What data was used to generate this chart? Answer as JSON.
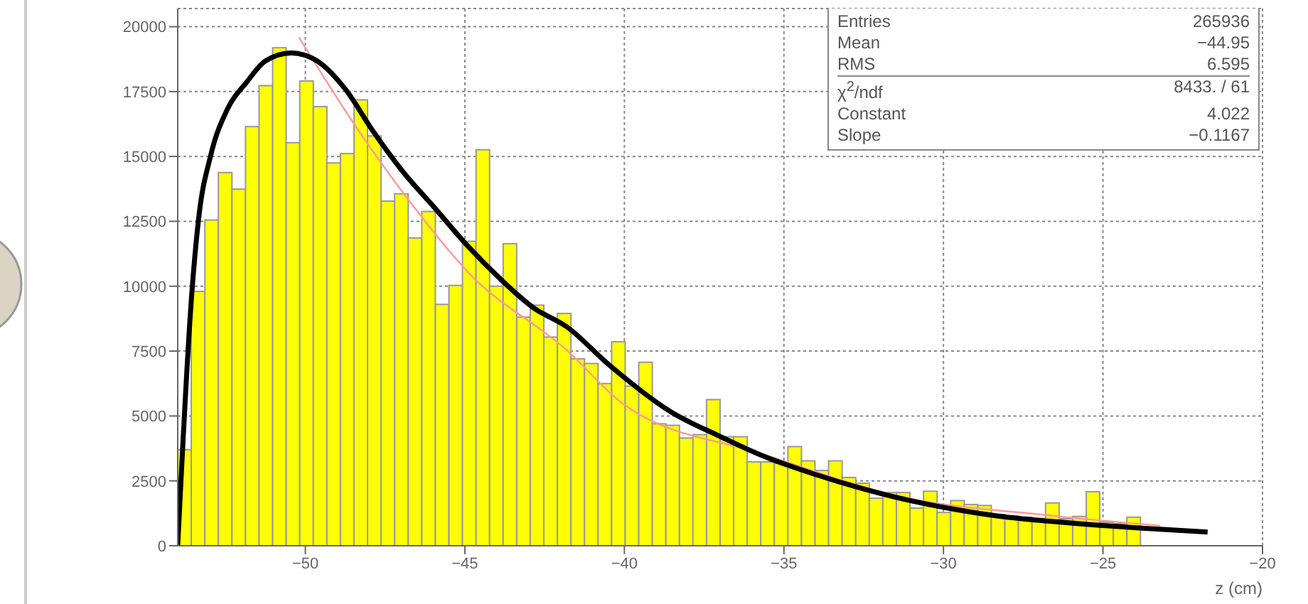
{
  "chart_data": {
    "type": "histogram",
    "xlabel": "z (cm)",
    "xlim": [
      -54,
      -20
    ],
    "xticks": [
      -50,
      -45,
      -40,
      -35,
      -30,
      -25,
      -20
    ],
    "ylim": [
      0,
      20700
    ],
    "yticks": [
      0,
      2500,
      5000,
      7500,
      10000,
      12500,
      15000,
      17500,
      20000
    ],
    "grid": true,
    "marker": "none",
    "line_style": "solid",
    "annotations": [
      "Entries 265936",
      "Mean −44.95",
      "RMS 6.595",
      "χ$^{2}$/ndf 8433. / 61",
      "Constant 4.022",
      "Slope −0.1167"
    ],
    "series": [
      {
        "color": "#ffff00",
        "bins": [
          -54,
          -53.575,
          -53.15,
          -52.725,
          -52.3,
          -51.875,
          -51.45,
          -51.025,
          -50.6,
          -50.175,
          -49.75,
          -49.325,
          -48.9,
          -48.475,
          -48.05,
          -47.625,
          -47.2,
          -46.775,
          -46.35,
          -45.925,
          -45.5,
          -45.075,
          -44.65,
          -44.225,
          -43.8,
          -43.375,
          -42.95,
          -42.525,
          -42.1,
          -41.675,
          -41.25,
          -40.825,
          -40.4,
          -39.975,
          -39.55,
          -39.125,
          -38.7,
          -38.275,
          -37.85,
          -37.425,
          -37,
          -36.575,
          -36.15,
          -35.725,
          -35.3,
          -34.875,
          -34.45,
          -34.025,
          -33.6,
          -33.175,
          -32.75,
          -32.325,
          -31.9,
          -31.475,
          -31.05,
          -30.625,
          -30.2,
          -29.775,
          -29.35,
          -28.925,
          -28.5,
          -28.075,
          -27.65,
          -27.225,
          -26.8,
          -26.375,
          -25.95,
          -25.525,
          -25.1,
          -24.675,
          -24.25,
          -23.825,
          -23.4,
          -22.975,
          -22.55,
          -22.125,
          -21.7,
          -21.275,
          -20.85,
          -20.425,
          -20
        ],
        "values": [
          3700,
          9800,
          12550,
          14380,
          13740,
          16150,
          17730,
          19190,
          15530,
          17910,
          16920,
          14750,
          15110,
          17180,
          15790,
          13280,
          13560,
          11860,
          12880,
          9300,
          10030,
          11730,
          15260,
          10000,
          11640,
          8810,
          9270,
          8040,
          8950,
          7200,
          7020,
          6250,
          7860,
          6150,
          7070,
          4700,
          4640,
          4150,
          4280,
          5630,
          4200,
          4200,
          3230,
          3230,
          3180,
          3820,
          3270,
          2900,
          3270,
          2630,
          2410,
          1830,
          2050,
          2050,
          1450,
          2100,
          1280,
          1740,
          1590,
          1550,
          1200,
          1150,
          1100,
          1050,
          1650,
          1040,
          1130,
          2080,
          900,
          850,
          1100,
          0,
          0,
          0,
          0,
          0,
          0,
          0,
          0,
          0
        ]
      },
      {
        "type": "line",
        "color": "#ff9999",
        "x": [
          -50.2,
          -48.3,
          -46.8,
          -44.9,
          -41.8,
          -40.0,
          -35.6,
          -31.2,
          -26.7,
          -23.2
        ],
        "values": [
          19590,
          15940,
          13380,
          10540,
          7530,
          5430,
          3510,
          1860,
          1170,
          770
        ]
      },
      {
        "type": "line",
        "color": "#000000",
        "x": [
          -54,
          -53.56,
          -53.34,
          -52.97,
          -52.43,
          -51.84,
          -51.25,
          -50.44,
          -49.63,
          -48.74,
          -47.86,
          -46.98,
          -45.94,
          -44.91,
          -43.88,
          -42.85,
          -41.81,
          -40.49,
          -38.53,
          -37.05,
          -35.58,
          -34.1,
          -32.62,
          -31.15,
          -29.68,
          -28.2,
          -26.73,
          -25.26,
          -23.78,
          -21.72
        ],
        "values": [
          0,
          9700,
          12650,
          15020,
          16850,
          17860,
          18680,
          18990,
          18680,
          17580,
          15940,
          14470,
          13010,
          11550,
          10270,
          9170,
          8440,
          6980,
          5150,
          4240,
          3420,
          2780,
          2230,
          1770,
          1410,
          1130,
          950,
          800,
          680,
          530
        ]
      }
    ]
  }
}
